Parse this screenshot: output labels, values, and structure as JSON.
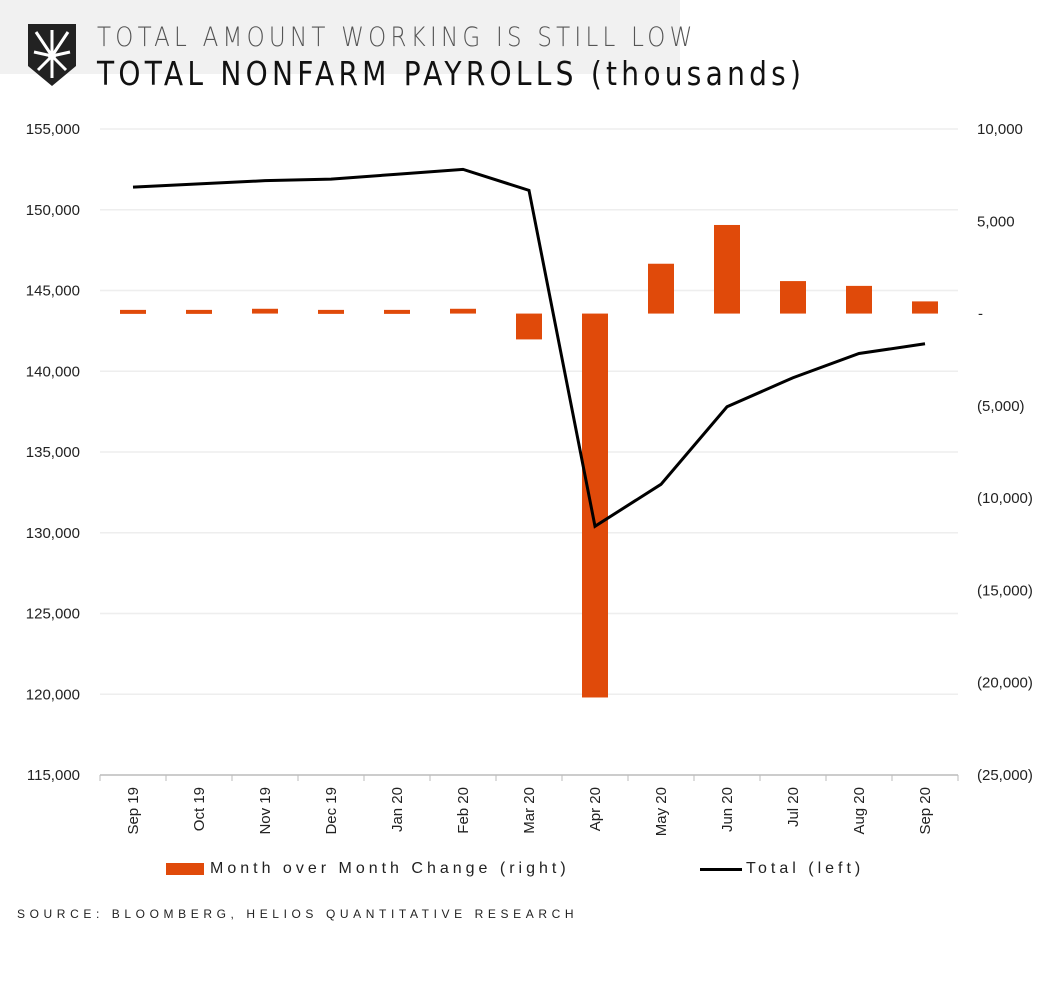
{
  "header": {
    "subtitle": "TOTAL AMOUNT WORKING IS STILL LOW",
    "title": "TOTAL NONFARM PAYROLLS (thousands)"
  },
  "source": "SOURCE: BLOOMBERG, HELIOS QUANTITATIVE RESEARCH",
  "colors": {
    "bar": "#e04a0a",
    "line": "#000000",
    "grid": "#eeeeee"
  },
  "chart_data": {
    "type": "bar+line",
    "title": "TOTAL NONFARM PAYROLLS (thousands)",
    "categories": [
      "Sep 19",
      "Oct 19",
      "Nov 19",
      "Dec 19",
      "Jan 20",
      "Feb 20",
      "Mar 20",
      "Apr 20",
      "May 20",
      "Jun 20",
      "Jul 20",
      "Aug 20",
      "Sep 20"
    ],
    "series": [
      {
        "name": "Month over Month Change (right)",
        "type": "bar",
        "axis": "right",
        "values": [
          200,
          200,
          260,
          200,
          200,
          260,
          -1400,
          -20800,
          2700,
          4800,
          1760,
          1500,
          660
        ]
      },
      {
        "name": "Total (left)",
        "type": "line",
        "axis": "left",
        "values": [
          151400,
          151600,
          151800,
          151900,
          152200,
          152500,
          151200,
          130400,
          133000,
          137800,
          139600,
          141100,
          141700
        ]
      }
    ],
    "left_axis": {
      "ylim": [
        115000,
        155000
      ],
      "ticks": [
        "115,000",
        "120,000",
        "125,000",
        "130,000",
        "135,000",
        "140,000",
        "145,000",
        "150,000",
        "155,000"
      ]
    },
    "right_axis": {
      "ylim": [
        -25000,
        10000
      ],
      "ticks": [
        "(25,000)",
        "(20,000)",
        "(15,000)",
        "(10,000)",
        "(5,000)",
        "-",
        "5,000",
        "10,000"
      ]
    },
    "legend": {
      "position": "bottom",
      "bar_label": "Month over Month Change (right)",
      "line_label": "Total (left)"
    },
    "grid": true
  }
}
